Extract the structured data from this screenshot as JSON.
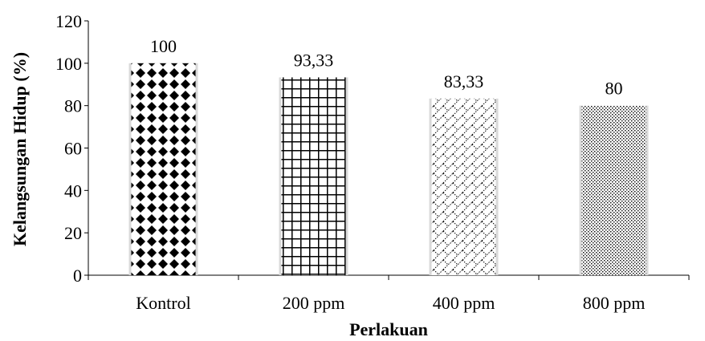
{
  "chart_data": {
    "type": "bar",
    "categories": [
      "Kontrol",
      "200 ppm",
      "400 ppm",
      "800 ppm"
    ],
    "values": [
      100,
      93.33,
      83.33,
      80
    ],
    "data_labels": [
      "100",
      "93,33",
      "83,33",
      "80"
    ],
    "xlabel": "Perlakuan",
    "ylabel": "Kelangsungan Hidup  (%)",
    "ylim": [
      0,
      120
    ],
    "yticks": [
      0,
      20,
      40,
      60,
      80,
      100,
      120
    ],
    "grid": false,
    "legend": "none",
    "bar_patterns": [
      "diamond-dots",
      "grid",
      "diagonal-cross",
      "fine-dots"
    ]
  }
}
